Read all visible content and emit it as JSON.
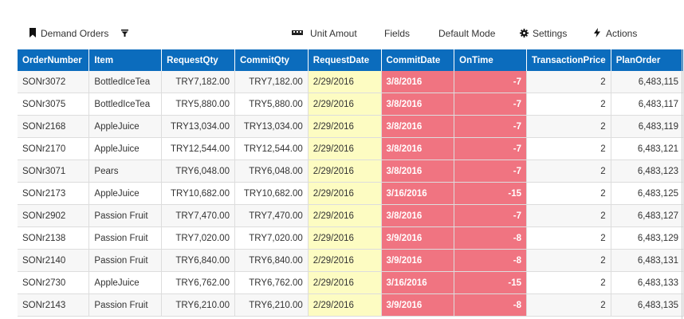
{
  "toolbar": {
    "demand_orders": "Demand Orders",
    "unit_amount": "Unit Amout",
    "fields": "Fields",
    "default_mode": "Default Mode",
    "settings": "Settings",
    "actions": "Actions"
  },
  "table": {
    "columns": [
      "OrderNumber",
      "Item",
      "RequestQty",
      "CommitQty",
      "RequestDate",
      "CommitDate",
      "OnTime",
      "TransactionPrice",
      "PlanOrder"
    ],
    "rows": [
      [
        "SONr3072",
        "BottledIceTea",
        "TRY7,182.00",
        "TRY7,182.00",
        "2/29/2016",
        "3/8/2016",
        "-7",
        "2",
        "6,483,115"
      ],
      [
        "SONr3075",
        "BottledIceTea",
        "TRY5,880.00",
        "TRY5,880.00",
        "2/29/2016",
        "3/8/2016",
        "-7",
        "2",
        "6,483,117"
      ],
      [
        "SONr2168",
        "AppleJuice",
        "TRY13,034.00",
        "TRY13,034.00",
        "2/29/2016",
        "3/8/2016",
        "-7",
        "2",
        "6,483,119"
      ],
      [
        "SONr2170",
        "AppleJuice",
        "TRY12,544.00",
        "TRY12,544.00",
        "2/29/2016",
        "3/8/2016",
        "-7",
        "2",
        "6,483,121"
      ],
      [
        "SONr3071",
        "Pears",
        "TRY6,048.00",
        "TRY6,048.00",
        "2/29/2016",
        "3/8/2016",
        "-7",
        "2",
        "6,483,123"
      ],
      [
        "SONr2173",
        "AppleJuice",
        "TRY10,682.00",
        "TRY10,682.00",
        "2/29/2016",
        "3/16/2016",
        "-15",
        "2",
        "6,483,125"
      ],
      [
        "SONr2902",
        "Passion Fruit",
        "TRY7,470.00",
        "TRY7,470.00",
        "2/29/2016",
        "3/8/2016",
        "-7",
        "2",
        "6,483,127"
      ],
      [
        "SONr2138",
        "Passion Fruit",
        "TRY7,020.00",
        "TRY7,020.00",
        "2/29/2016",
        "3/9/2016",
        "-8",
        "2",
        "6,483,129"
      ],
      [
        "SONr2140",
        "Passion Fruit",
        "TRY6,840.00",
        "TRY6,840.00",
        "2/29/2016",
        "3/9/2016",
        "-8",
        "2",
        "6,483,131"
      ],
      [
        "SONr2730",
        "AppleJuice",
        "TRY6,762.00",
        "TRY6,762.00",
        "2/29/2016",
        "3/16/2016",
        "-15",
        "2",
        "6,483,133"
      ],
      [
        "SONr2143",
        "Passion Fruit",
        "TRY6,210.00",
        "TRY6,210.00",
        "2/29/2016",
        "3/9/2016",
        "-8",
        "2",
        "6,483,135"
      ]
    ]
  }
}
